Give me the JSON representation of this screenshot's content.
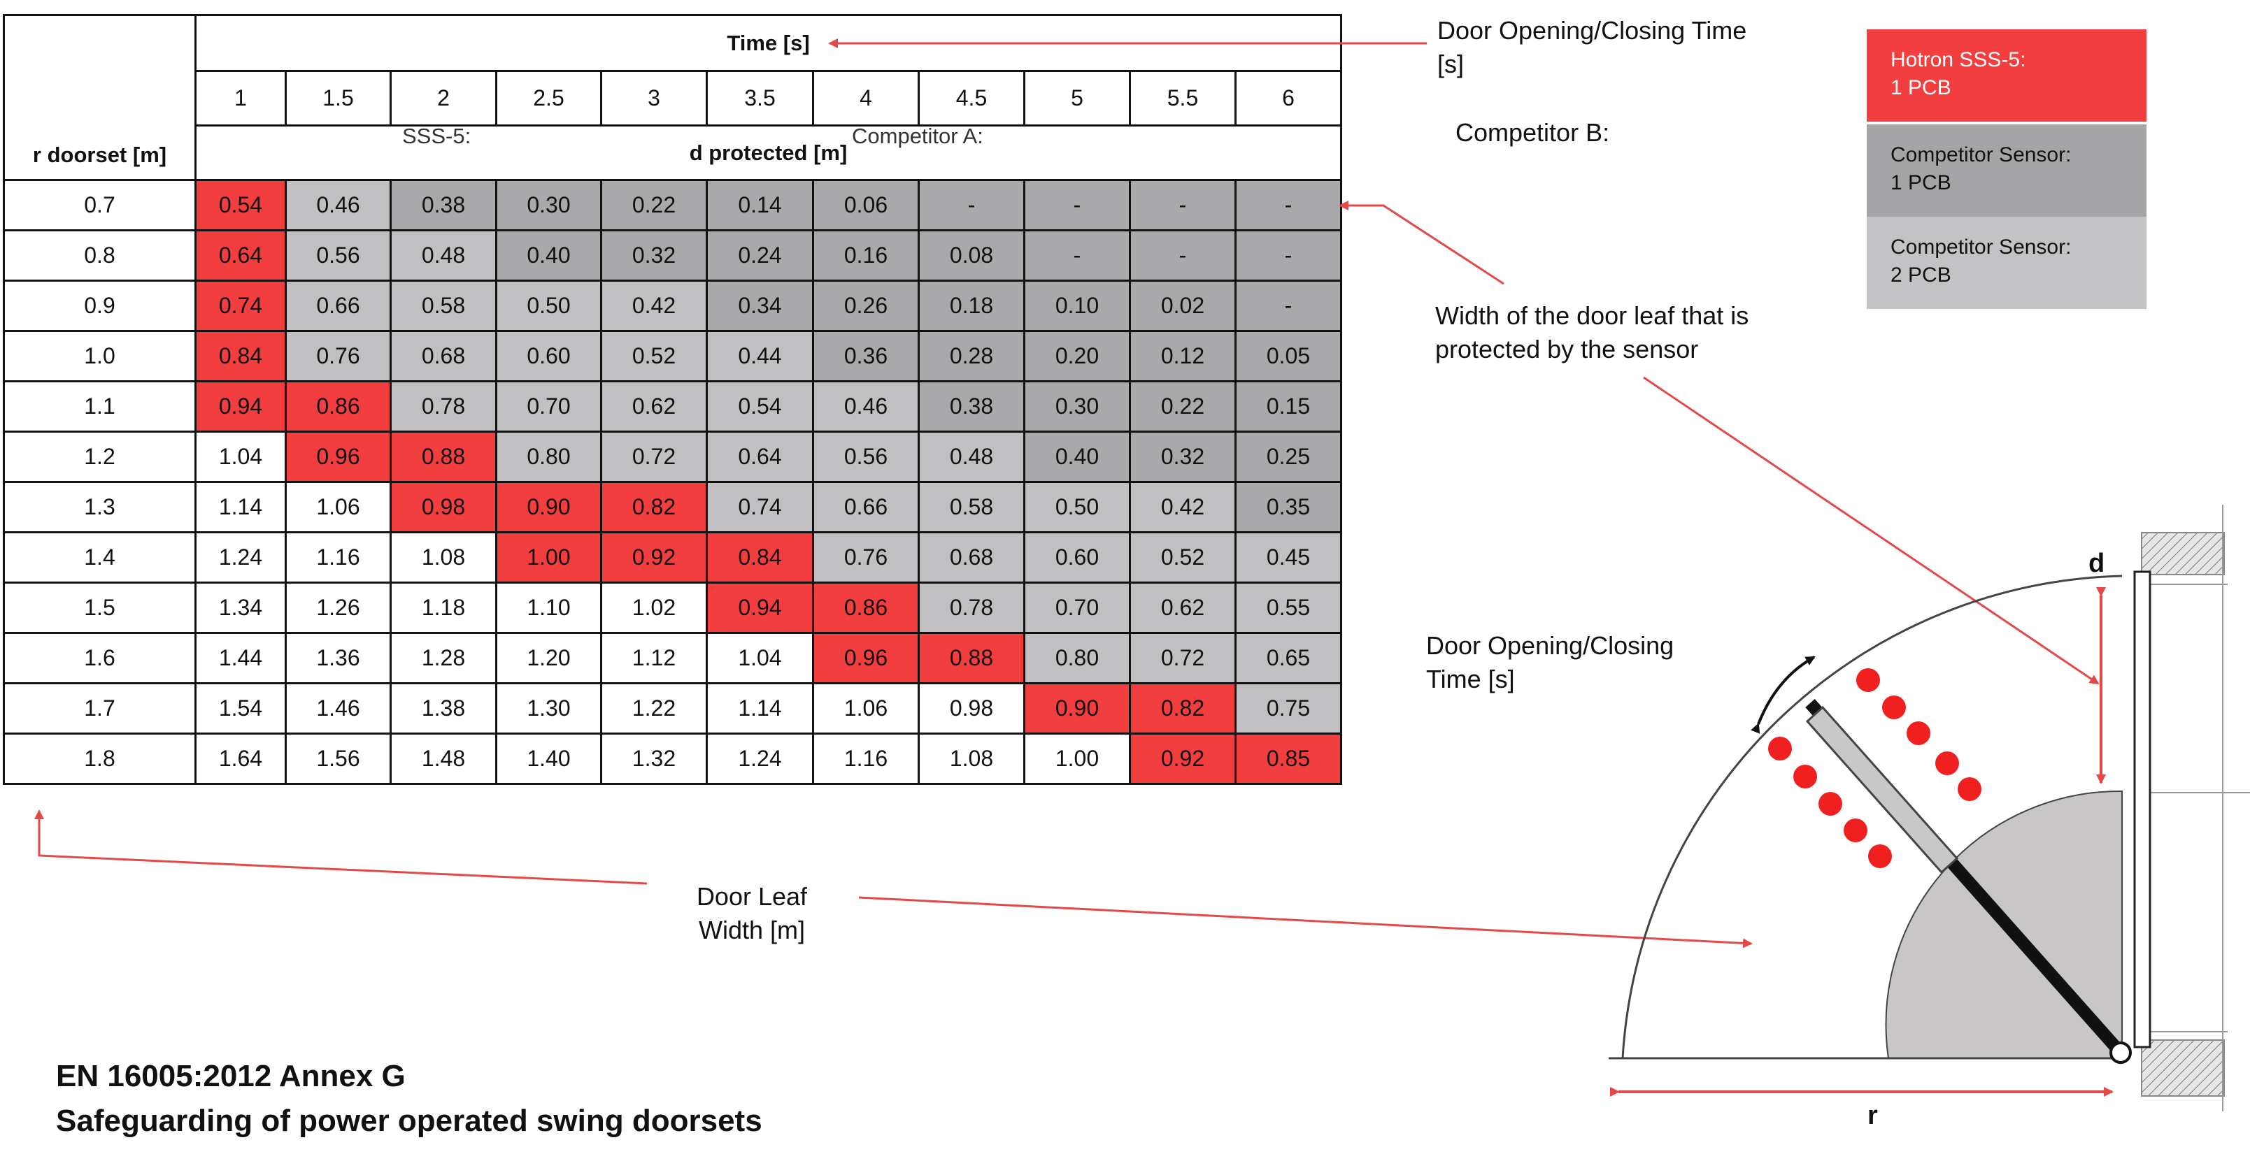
{
  "table": {
    "time_header": "Time [s]",
    "row_header": "r doorset [m]",
    "d_header": "d protected [m]",
    "time_values": [
      "1",
      "1.5",
      "2",
      "2.5",
      "3",
      "3.5",
      "4",
      "4.5",
      "5",
      "5.5",
      "6"
    ],
    "ghost_labels": {
      "sss5": "SSS-5:",
      "competitor_a": "Competitor A:"
    },
    "rows": [
      {
        "r": "0.7",
        "cells": [
          "0.54",
          "0.46",
          "0.38",
          "0.30",
          "0.22",
          "0.14",
          "0.06",
          "-",
          "-",
          "-",
          "-"
        ],
        "fills": [
          "red",
          "light",
          "dark",
          "dark",
          "dark",
          "dark",
          "dark",
          "dark",
          "dark",
          "dark",
          "dark"
        ]
      },
      {
        "r": "0.8",
        "cells": [
          "0.64",
          "0.56",
          "0.48",
          "0.40",
          "0.32",
          "0.24",
          "0.16",
          "0.08",
          "-",
          "-",
          "-"
        ],
        "fills": [
          "red",
          "light",
          "light",
          "dark",
          "dark",
          "dark",
          "dark",
          "dark",
          "dark",
          "dark",
          "dark"
        ]
      },
      {
        "r": "0.9",
        "cells": [
          "0.74",
          "0.66",
          "0.58",
          "0.50",
          "0.42",
          "0.34",
          "0.26",
          "0.18",
          "0.10",
          "0.02",
          "-"
        ],
        "fills": [
          "red",
          "light",
          "light",
          "light",
          "light",
          "dark",
          "dark",
          "dark",
          "dark",
          "dark",
          "dark"
        ]
      },
      {
        "r": "1.0",
        "cells": [
          "0.84",
          "0.76",
          "0.68",
          "0.60",
          "0.52",
          "0.44",
          "0.36",
          "0.28",
          "0.20",
          "0.12",
          "0.05"
        ],
        "fills": [
          "red",
          "light",
          "light",
          "light",
          "light",
          "light",
          "dark",
          "dark",
          "dark",
          "dark",
          "dark"
        ]
      },
      {
        "r": "1.1",
        "cells": [
          "0.94",
          "0.86",
          "0.78",
          "0.70",
          "0.62",
          "0.54",
          "0.46",
          "0.38",
          "0.30",
          "0.22",
          "0.15"
        ],
        "fills": [
          "red",
          "red",
          "light",
          "light",
          "light",
          "light",
          "light",
          "dark",
          "dark",
          "dark",
          "dark"
        ]
      },
      {
        "r": "1.2",
        "cells": [
          "1.04",
          "0.96",
          "0.88",
          "0.80",
          "0.72",
          "0.64",
          "0.56",
          "0.48",
          "0.40",
          "0.32",
          "0.25"
        ],
        "fills": [
          "white",
          "red",
          "red",
          "light",
          "light",
          "light",
          "light",
          "light",
          "dark",
          "dark",
          "dark"
        ]
      },
      {
        "r": "1.3",
        "cells": [
          "1.14",
          "1.06",
          "0.98",
          "0.90",
          "0.82",
          "0.74",
          "0.66",
          "0.58",
          "0.50",
          "0.42",
          "0.35"
        ],
        "fills": [
          "white",
          "white",
          "red",
          "red",
          "red",
          "light",
          "light",
          "light",
          "light",
          "light",
          "dark"
        ]
      },
      {
        "r": "1.4",
        "cells": [
          "1.24",
          "1.16",
          "1.08",
          "1.00",
          "0.92",
          "0.84",
          "0.76",
          "0.68",
          "0.60",
          "0.52",
          "0.45"
        ],
        "fills": [
          "white",
          "white",
          "white",
          "red",
          "red",
          "red",
          "light",
          "light",
          "light",
          "light",
          "light"
        ]
      },
      {
        "r": "1.5",
        "cells": [
          "1.34",
          "1.26",
          "1.18",
          "1.10",
          "1.02",
          "0.94",
          "0.86",
          "0.78",
          "0.70",
          "0.62",
          "0.55"
        ],
        "fills": [
          "white",
          "white",
          "white",
          "white",
          "white",
          "red",
          "red",
          "light",
          "light",
          "light",
          "light"
        ]
      },
      {
        "r": "1.6",
        "cells": [
          "1.44",
          "1.36",
          "1.28",
          "1.20",
          "1.12",
          "1.04",
          "0.96",
          "0.88",
          "0.80",
          "0.72",
          "0.65"
        ],
        "fills": [
          "white",
          "white",
          "white",
          "white",
          "white",
          "white",
          "red",
          "red",
          "light",
          "light",
          "light"
        ]
      },
      {
        "r": "1.7",
        "cells": [
          "1.54",
          "1.46",
          "1.38",
          "1.30",
          "1.22",
          "1.14",
          "1.06",
          "0.98",
          "0.90",
          "0.82",
          "0.75"
        ],
        "fills": [
          "white",
          "white",
          "white",
          "white",
          "white",
          "white",
          "white",
          "white",
          "red",
          "red",
          "light"
        ]
      },
      {
        "r": "1.8",
        "cells": [
          "1.64",
          "1.56",
          "1.48",
          "1.40",
          "1.32",
          "1.24",
          "1.16",
          "1.08",
          "1.00",
          "0.92",
          "0.85"
        ],
        "fills": [
          "white",
          "white",
          "white",
          "white",
          "white",
          "white",
          "white",
          "white",
          "white",
          "red",
          "red"
        ]
      }
    ]
  },
  "annotations": {
    "time_note_line1": "Door Opening/Closing Time",
    "time_note_line2": "[s]",
    "competitor_b": "Competitor B:",
    "width_note_line1": "Width of the door leaf that is",
    "width_note_line2": "protected by the sensor",
    "diagram_time_line1": "Door Opening/Closing",
    "diagram_time_line2": "Time [s]",
    "door_leaf_line1": "Door Leaf",
    "door_leaf_line2": "Width [m]",
    "label_d": "d",
    "label_r": "r"
  },
  "legend": [
    {
      "line1": "Hotron SSS-5:",
      "line2": "1 PCB",
      "color": "#f23e3e"
    },
    {
      "line1": "Competitor Sensor:",
      "line2": "1 PCB",
      "color": "#a5a5a7"
    },
    {
      "line1": "Competitor Sensor:",
      "line2": "2 PCB",
      "color": "#c3c3c5"
    }
  ],
  "footer": {
    "title_line1": "EN 16005:2012 Annex G",
    "title_line2": "Safeguarding of power operated swing doorsets"
  },
  "colors": {
    "red": "#f23e3e",
    "dark_gray": "#a9a9ab",
    "light_gray": "#c0c0c2",
    "arrow": "#e24a4a"
  }
}
